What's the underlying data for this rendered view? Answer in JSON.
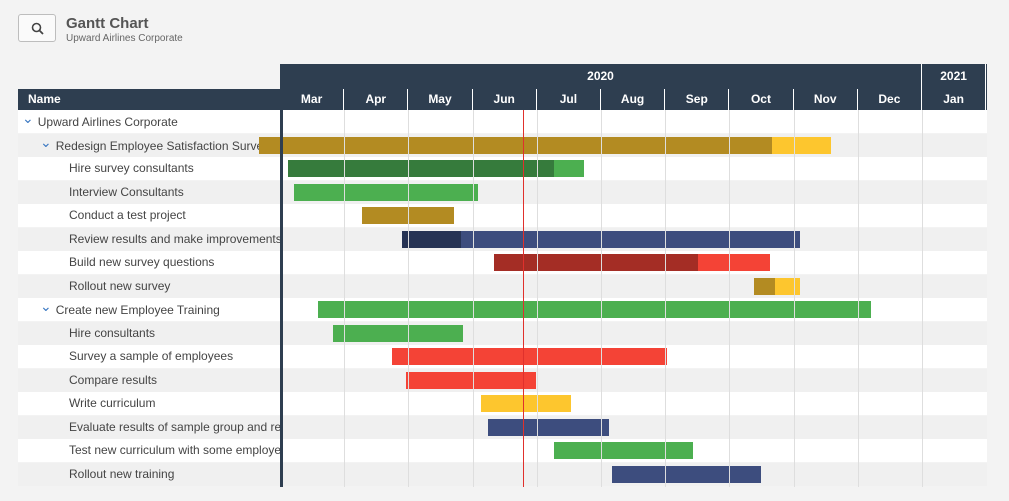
{
  "header": {
    "title": "Gantt Chart",
    "subtitle": "Upward Airlines Corporate"
  },
  "toolbar": {
    "search_icon": "search-icon"
  },
  "columns": {
    "name": "Name"
  },
  "years": [
    {
      "label": "2020",
      "start_month": 0,
      "months": 10
    },
    {
      "label": "2021",
      "start_month": 10,
      "months": 1
    }
  ],
  "months": [
    "Mar",
    "Apr",
    "May",
    "Jun",
    "Jul",
    "Aug",
    "Sep",
    "Oct",
    "Nov",
    "Dec",
    "Jan"
  ],
  "today": 3.5,
  "rows": [
    {
      "label": "Upward Airlines Corporate",
      "level": 0,
      "toggle": true,
      "bars": []
    },
    {
      "label": "Redesign Employee Satisfaction Survey",
      "level": 1,
      "toggle": true,
      "bars": [
        {
          "start": -0.38,
          "end": 7.62,
          "color": "#b38b22"
        },
        {
          "start": 7.62,
          "end": 8.53,
          "color": "#fdc62e"
        }
      ]
    },
    {
      "label": "Hire survey consultants",
      "level": 2,
      "toggle": false,
      "bars": [
        {
          "start": 0.08,
          "end": 4.22,
          "color": "#367b3c"
        },
        {
          "start": 4.22,
          "end": 4.69,
          "color": "#4caf50"
        }
      ]
    },
    {
      "label": "Interview Consultants",
      "level": 2,
      "toggle": false,
      "bars": [
        {
          "start": 0.17,
          "end": 3.03,
          "color": "#4caf50"
        }
      ]
    },
    {
      "label": "Conduct a test project",
      "level": 2,
      "toggle": false,
      "bars": [
        {
          "start": 1.23,
          "end": 2.66,
          "color": "#b38b22"
        }
      ]
    },
    {
      "label": "Review results and make improvements",
      "level": 2,
      "toggle": false,
      "bars": [
        {
          "start": 1.86,
          "end": 2.78,
          "color": "#263354"
        },
        {
          "start": 2.78,
          "end": 8.06,
          "color": "#3d4d7e"
        }
      ]
    },
    {
      "label": "Build new survey questions",
      "level": 2,
      "toggle": false,
      "bars": [
        {
          "start": 3.28,
          "end": 6.47,
          "color": "#a42d25"
        },
        {
          "start": 6.47,
          "end": 7.58,
          "color": "#f44336"
        }
      ]
    },
    {
      "label": "Rollout new survey",
      "level": 2,
      "toggle": false,
      "bars": [
        {
          "start": 7.34,
          "end": 7.67,
          "color": "#b38b22"
        },
        {
          "start": 7.67,
          "end": 8.06,
          "color": "#fdc62e"
        }
      ]
    },
    {
      "label": "Create new Employee Training",
      "level": 1,
      "toggle": true,
      "bars": [
        {
          "start": 0.55,
          "end": 9.16,
          "color": "#4caf50"
        }
      ]
    },
    {
      "label": "Hire consultants",
      "level": 2,
      "toggle": false,
      "bars": [
        {
          "start": 0.78,
          "end": 2.8,
          "color": "#4caf50"
        }
      ]
    },
    {
      "label": "Survey a sample of employees",
      "level": 2,
      "toggle": false,
      "bars": [
        {
          "start": 1.7,
          "end": 5.98,
          "color": "#f44336"
        }
      ]
    },
    {
      "label": "Compare results",
      "level": 2,
      "toggle": false,
      "bars": [
        {
          "start": 1.92,
          "end": 3.94,
          "color": "#f44336"
        }
      ]
    },
    {
      "label": "Write curriculum",
      "level": 2,
      "toggle": false,
      "bars": [
        {
          "start": 3.08,
          "end": 4.48,
          "color": "#fdc62e"
        }
      ]
    },
    {
      "label": "Evaluate results of sample group and re-evaluate",
      "level": 2,
      "toggle": false,
      "bars": [
        {
          "start": 3.19,
          "end": 5.08,
          "color": "#3d4d7e"
        }
      ]
    },
    {
      "label": "Test new curriculum with some employees",
      "level": 2,
      "toggle": false,
      "bars": [
        {
          "start": 4.22,
          "end": 6.39,
          "color": "#4caf50"
        }
      ]
    },
    {
      "label": "Rollout new training",
      "level": 2,
      "toggle": false,
      "bars": [
        {
          "start": 5.12,
          "end": 7.44,
          "color": "#3d4d7e"
        }
      ]
    }
  ]
}
